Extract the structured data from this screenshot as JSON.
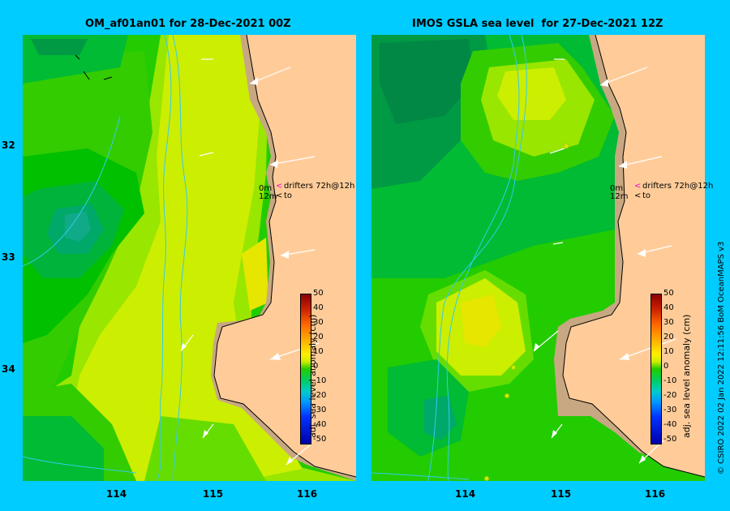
{
  "left_map": {
    "title": "OM_af01an01 for 28-Dec-2021 00Z"
  },
  "right_map": {
    "title": "IMOS GSLA sea level  for 27-Dec-2021 12Z"
  },
  "axes": {
    "x_ticks": [
      "114",
      "115",
      "116"
    ],
    "y_ticks": [
      "32",
      "33",
      "34"
    ]
  },
  "legend": {
    "depth_top": "0m",
    "depth_bottom": "12m",
    "drifters": "drifters 72h@12h",
    "to": "to",
    "arrow_glyph": "<"
  },
  "colorbar": {
    "label": "adj. sea level anomaly (cm)",
    "ticks": [
      "50",
      "40",
      "30",
      "20",
      "10",
      "0",
      "-10",
      "-20",
      "-30",
      "-40",
      "-50"
    ]
  },
  "credit": "© CSIRO 2022   02 Jan 2022 12:11:56 BoM OceanMAPS v3",
  "colors": {
    "background": "#00ccff",
    "land": "#ffcc99",
    "shelf": "#c8a882",
    "isobath": "#33ccee",
    "high_anomaly": "#ccee00",
    "low_anomaly": "#00bb33"
  }
}
